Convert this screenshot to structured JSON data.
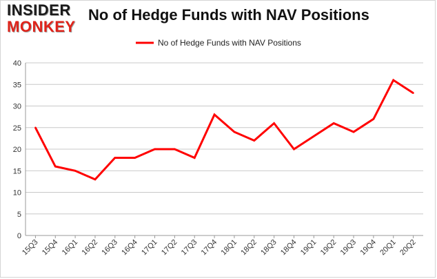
{
  "logo": {
    "line1": "INSIDER",
    "line2": "MONKEY"
  },
  "colors": {
    "series": "#ff0000",
    "logo_dark": "#1a1a1a",
    "logo_red": "#e0231a",
    "grid": "#c8c8c8",
    "axis": "#999999"
  },
  "chart_data": {
    "type": "line",
    "title": "No of Hedge Funds with NAV Positions",
    "xlabel": "",
    "ylabel": "",
    "ylim": [
      0,
      40
    ],
    "yticks": [
      0,
      5,
      10,
      15,
      20,
      25,
      30,
      35,
      40
    ],
    "grid": "horizontal",
    "legend_position": "top-center",
    "categories": [
      "15Q3",
      "15Q4",
      "16Q1",
      "16Q2",
      "16Q3",
      "16Q4",
      "17Q1",
      "17Q2",
      "17Q3",
      "17Q4",
      "18Q1",
      "18Q2",
      "18Q3",
      "18Q4",
      "19Q1",
      "19Q2",
      "19Q3",
      "19Q4",
      "20Q1",
      "20Q2"
    ],
    "series": [
      {
        "name": "No of Hedge Funds with NAV Positions",
        "color": "#ff0000",
        "values": [
          25,
          16,
          15,
          13,
          18,
          18,
          20,
          20,
          18,
          28,
          24,
          22,
          26,
          20,
          23,
          26,
          24,
          27,
          36,
          33
        ]
      }
    ]
  }
}
